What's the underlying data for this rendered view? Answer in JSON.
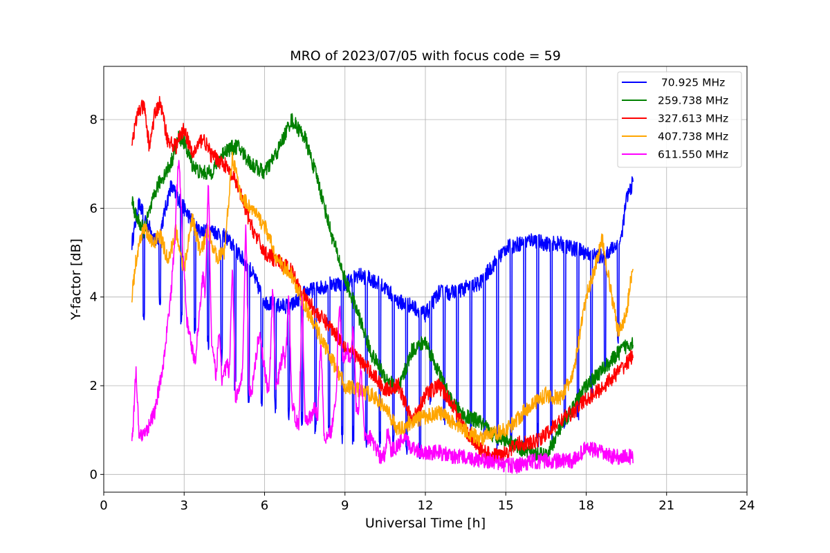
{
  "chart_data": {
    "type": "line",
    "title": "MRO of 2023/07/05 with focus code = 59",
    "xlabel": "Universal Time [h]",
    "ylabel": "Y-factor [dB]",
    "xlim": [
      0,
      24
    ],
    "ylim": [
      -0.4,
      9.2
    ],
    "xticks": [
      "0",
      "3",
      "6",
      "9",
      "12",
      "15",
      "18",
      "21",
      "24"
    ],
    "yticks": [
      "0",
      "2",
      "4",
      "6",
      "8"
    ],
    "grid": true,
    "legend_position": "top-right",
    "series": [
      {
        "name": " 70.925 MHz",
        "color": "#0000ff",
        "x": [
          1.05,
          1.3,
          1.6,
          2.0,
          2.5,
          3.0,
          3.5,
          4.0,
          4.5,
          5.0,
          5.5,
          6.0,
          6.5,
          7.0,
          7.5,
          8.0,
          8.5,
          9.0,
          9.5,
          10.0,
          10.5,
          11.0,
          11.5,
          12.0,
          12.5,
          13.0,
          13.5,
          14.0,
          14.5,
          15.0,
          15.5,
          16.0,
          16.5,
          17.0,
          17.5,
          18.0,
          18.5,
          19.0,
          19.3,
          19.5,
          19.75
        ],
        "y": [
          5.2,
          6.1,
          5.7,
          5.2,
          6.5,
          6.0,
          5.5,
          5.5,
          5.4,
          5.0,
          4.6,
          3.9,
          3.8,
          3.8,
          4.1,
          4.2,
          4.3,
          4.3,
          4.5,
          4.4,
          4.2,
          3.9,
          3.8,
          3.6,
          4.1,
          4.1,
          4.2,
          4.3,
          4.7,
          5.1,
          5.2,
          5.3,
          5.2,
          5.2,
          5.1,
          5.0,
          4.9,
          5.1,
          5.3,
          6.2,
          6.6
        ],
        "dips": [
          [
            1.5,
            3.4
          ],
          [
            2.1,
            3.8
          ],
          [
            2.9,
            3.5
          ],
          [
            3.4,
            3.2
          ],
          [
            3.9,
            2.8
          ],
          [
            4.4,
            2.4
          ],
          [
            4.9,
            2.0
          ],
          [
            5.4,
            1.6
          ],
          [
            5.9,
            1.6
          ],
          [
            6.4,
            1.4
          ],
          [
            6.9,
            1.2
          ],
          [
            7.4,
            1.0
          ],
          [
            7.9,
            0.9
          ],
          [
            8.4,
            0.9
          ],
          [
            8.9,
            0.8
          ],
          [
            9.3,
            0.7
          ],
          [
            9.8,
            0.6
          ],
          [
            10.3,
            0.6
          ],
          [
            10.8,
            0.5
          ],
          [
            11.3,
            0.4
          ],
          [
            11.8,
            0.2
          ],
          [
            12.2,
            1.5
          ],
          [
            12.7,
            1.2
          ],
          [
            13.2,
            1.0
          ],
          [
            13.7,
            0.8
          ],
          [
            14.2,
            0.7
          ],
          [
            14.7,
            0.6
          ],
          [
            15.2,
            0.6
          ],
          [
            15.7,
            0.6
          ],
          [
            16.2,
            0.7
          ],
          [
            16.7,
            0.8
          ],
          [
            17.2,
            1.0
          ],
          [
            17.7,
            1.3
          ],
          [
            18.2,
            1.6
          ],
          [
            18.7,
            2.2
          ],
          [
            19.2,
            3.0
          ]
        ]
      },
      {
        "name": "259.738 MHz",
        "color": "#008000",
        "x": [
          1.05,
          1.2,
          1.5,
          2.0,
          2.5,
          2.8,
          3.0,
          3.3,
          3.6,
          4.0,
          4.5,
          5.0,
          5.5,
          6.0,
          6.5,
          7.0,
          7.5,
          8.0,
          8.5,
          9.0,
          9.5,
          10.0,
          10.5,
          11.0,
          11.5,
          12.0,
          12.5,
          13.0,
          13.5,
          14.0,
          14.5,
          15.0,
          15.5,
          16.0,
          16.5,
          17.0,
          17.5,
          18.0,
          18.5,
          19.0,
          19.3,
          19.5,
          19.75
        ],
        "y": [
          6.2,
          5.8,
          5.5,
          6.5,
          7.0,
          7.6,
          7.5,
          7.0,
          6.8,
          6.8,
          7.3,
          7.4,
          7.0,
          6.8,
          7.3,
          8.0,
          7.6,
          6.6,
          5.4,
          4.4,
          3.6,
          2.7,
          2.2,
          1.9,
          2.8,
          3.0,
          2.3,
          1.6,
          1.3,
          1.2,
          0.9,
          0.8,
          0.6,
          0.5,
          0.4,
          1.0,
          1.5,
          2.0,
          2.3,
          2.6,
          2.8,
          2.9,
          3.0
        ]
      },
      {
        "name": "327.613 MHz",
        "color": "#ff0000",
        "x": [
          1.05,
          1.3,
          1.5,
          1.7,
          1.9,
          2.1,
          2.4,
          2.7,
          3.0,
          3.3,
          3.7,
          4.0,
          4.5,
          5.0,
          5.5,
          6.0,
          6.5,
          7.0,
          7.5,
          8.0,
          8.5,
          9.0,
          9.5,
          10.0,
          10.5,
          11.0,
          11.5,
          12.0,
          12.5,
          13.0,
          13.5,
          14.0,
          14.5,
          15.0,
          15.5,
          16.0,
          16.5,
          17.0,
          17.5,
          18.0,
          18.5,
          19.0,
          19.5,
          19.75
        ],
        "y": [
          7.5,
          8.2,
          8.3,
          7.4,
          8.1,
          8.4,
          7.5,
          7.4,
          7.8,
          7.2,
          7.6,
          7.2,
          7.0,
          6.5,
          5.6,
          5.0,
          4.8,
          4.6,
          4.0,
          3.6,
          3.3,
          2.9,
          2.6,
          2.3,
          1.9,
          2.0,
          1.2,
          1.8,
          2.0,
          1.6,
          1.0,
          0.6,
          0.4,
          0.5,
          0.7,
          0.7,
          0.9,
          1.2,
          1.4,
          1.7,
          1.9,
          2.2,
          2.5,
          2.7
        ]
      },
      {
        "name": "407.738 MHz",
        "color": "#ffa500",
        "x": [
          1.05,
          1.2,
          1.5,
          1.8,
          2.1,
          2.4,
          2.7,
          3.0,
          3.3,
          3.6,
          3.9,
          4.2,
          4.5,
          4.8,
          5.1,
          5.5,
          6.0,
          6.5,
          7.0,
          7.5,
          8.0,
          8.5,
          9.0,
          9.5,
          10.0,
          10.5,
          11.0,
          11.5,
          12.0,
          12.5,
          13.0,
          13.5,
          14.0,
          14.5,
          15.0,
          15.5,
          16.0,
          16.5,
          17.0,
          17.5,
          18.0,
          18.3,
          18.6,
          18.9,
          19.2,
          19.5,
          19.75
        ],
        "y": [
          4.0,
          4.8,
          5.6,
          5.2,
          5.4,
          4.8,
          5.5,
          4.6,
          5.8,
          5.0,
          5.5,
          4.9,
          5.0,
          7.2,
          6.3,
          6.0,
          5.6,
          4.8,
          4.5,
          3.8,
          3.2,
          2.6,
          2.0,
          1.9,
          1.8,
          1.5,
          1.0,
          1.2,
          1.3,
          1.4,
          1.2,
          1.0,
          0.8,
          0.9,
          1.0,
          1.3,
          1.6,
          1.8,
          1.7,
          2.2,
          4.0,
          4.6,
          5.3,
          4.2,
          3.2,
          3.6,
          4.8
        ]
      },
      {
        "name": "611.550 MHz",
        "color": "#ff00ff",
        "x": [
          1.05,
          1.3,
          1.6,
          1.9,
          2.2,
          2.5,
          2.8,
          3.1,
          3.4,
          3.7,
          4.0,
          4.3,
          4.6,
          4.9,
          5.2,
          5.5,
          5.8,
          6.1,
          6.4,
          6.7,
          7.0,
          7.3,
          7.6,
          7.9,
          8.2,
          8.5,
          8.8,
          9.1,
          9.4,
          9.7,
          10.0,
          10.3,
          10.6,
          10.9,
          11.2,
          11.5,
          12.0,
          12.5,
          13.0,
          13.5,
          14.0,
          14.5,
          15.0,
          15.5,
          16.0,
          16.5,
          17.0,
          17.5,
          18.0,
          18.5,
          19.0,
          19.5,
          19.75
        ],
        "y": [
          0.9,
          0.8,
          1.0,
          1.4,
          2.4,
          4.0,
          6.6,
          3.5,
          2.5,
          4.5,
          3.0,
          1.8,
          2.5,
          1.6,
          2.3,
          1.8,
          3.2,
          2.0,
          1.8,
          2.8,
          1.6,
          1.0,
          1.2,
          1.5,
          0.8,
          1.0,
          2.5,
          2.8,
          1.5,
          0.9,
          0.8,
          0.4,
          0.5,
          0.6,
          0.8,
          0.6,
          0.5,
          0.5,
          0.4,
          0.4,
          0.3,
          0.3,
          0.2,
          0.2,
          0.3,
          0.3,
          0.3,
          0.3,
          0.6,
          0.5,
          0.4,
          0.4,
          0.4
        ],
        "peaks": [
          [
            1.2,
            2.4
          ],
          [
            2.8,
            7.0
          ],
          [
            3.9,
            6.7
          ],
          [
            4.3,
            3.3
          ],
          [
            4.8,
            4.8
          ],
          [
            5.3,
            5.8
          ],
          [
            6.3,
            4.3
          ],
          [
            6.9,
            4.1
          ],
          [
            7.4,
            4.0
          ],
          [
            8.1,
            3.1
          ],
          [
            8.8,
            3.8
          ],
          [
            9.3,
            3.4
          ],
          [
            9.6,
            2.4
          ],
          [
            10.6,
            1.0
          ]
        ]
      }
    ]
  }
}
